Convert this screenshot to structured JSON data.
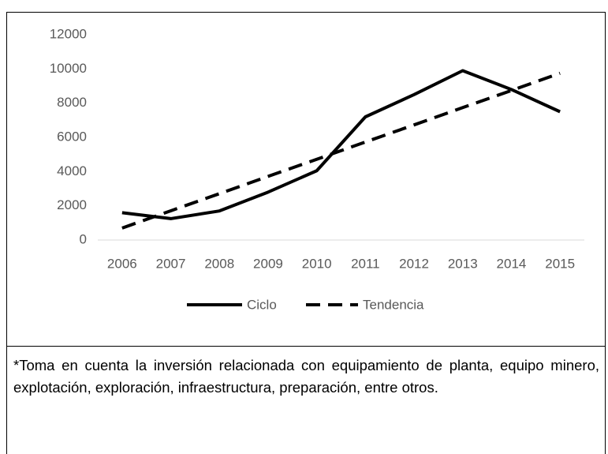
{
  "chart_data": {
    "type": "line",
    "categories": [
      "2006",
      "2007",
      "2008",
      "2009",
      "2010",
      "2011",
      "2012",
      "2013",
      "2014",
      "2015"
    ],
    "series": [
      {
        "name": "Ciclo",
        "color": "#000000",
        "line_style": "solid",
        "values": [
          1600,
          1250,
          1700,
          2800,
          4050,
          7200,
          8500,
          9900,
          8800,
          7500
        ]
      },
      {
        "name": "Tendencia",
        "color": "#000000",
        "line_style": "dashed",
        "values": [
          700,
          1710,
          2710,
          3720,
          4720,
          5730,
          6730,
          7740,
          8740,
          9750
        ]
      }
    ],
    "ylim": [
      0,
      12000
    ],
    "yticks": [
      0,
      2000,
      4000,
      6000,
      8000,
      10000,
      12000
    ],
    "grid": false,
    "legend": "bottom",
    "footnote": "*Toma en cuenta la inversión relacionada con equipamiento de planta, equipo minero, explotación, exploración, infraestructura, preparación, entre otros."
  }
}
